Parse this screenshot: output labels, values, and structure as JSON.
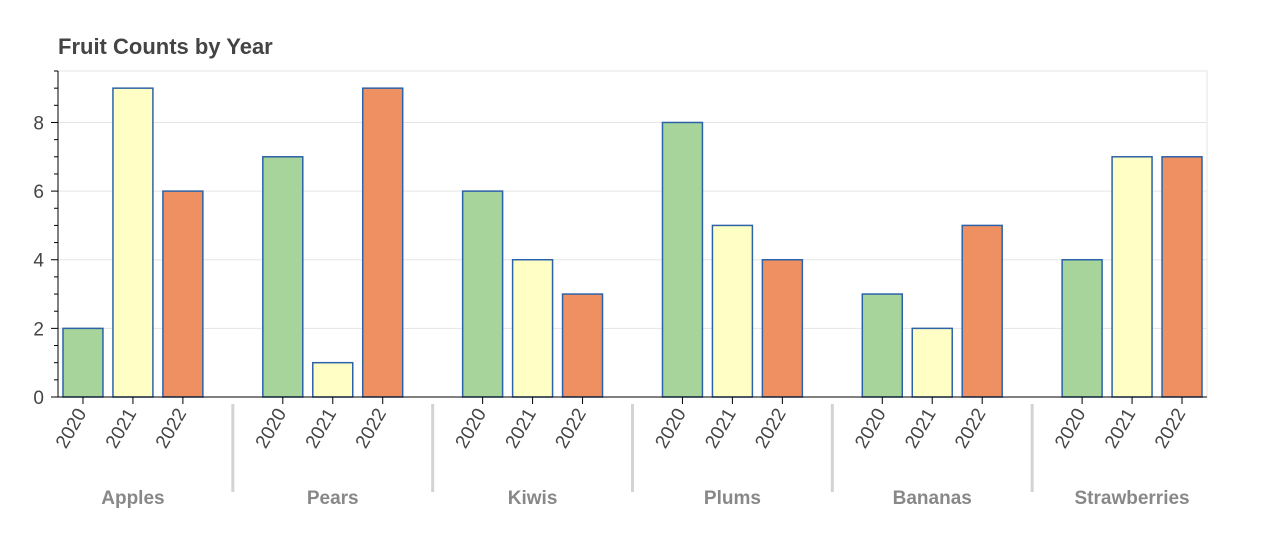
{
  "chart_data": {
    "type": "bar",
    "title": "Fruit Counts by Year",
    "xlabel": "",
    "ylabel": "",
    "categories": [
      "Apples",
      "Pears",
      "Kiwis",
      "Plums",
      "Bananas",
      "Strawberries"
    ],
    "subcategories": [
      "2020",
      "2021",
      "2022"
    ],
    "series": [
      {
        "values": [
          2,
          7,
          6,
          8,
          3,
          4
        ],
        "color": "#a6d49a"
      },
      {
        "values": [
          9,
          1,
          4,
          5,
          2,
          7
        ],
        "color": "#ffffc5"
      },
      {
        "values": [
          6,
          9,
          3,
          4,
          5,
          7
        ],
        "color": "#ef9063"
      }
    ],
    "bar_outline_color": "#2c62a8",
    "yticks": [
      0,
      2,
      4,
      6,
      8
    ],
    "ylim": [
      0,
      9.5
    ],
    "grid": true,
    "legend": "none"
  }
}
